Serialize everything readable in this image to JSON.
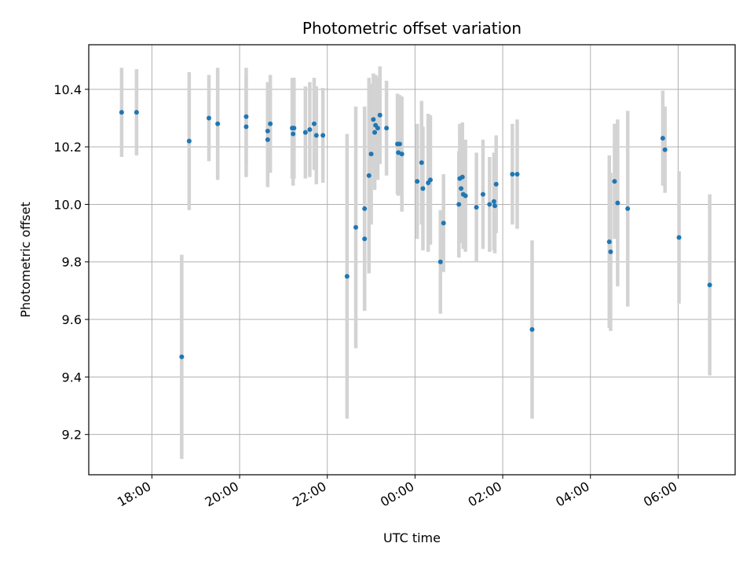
{
  "chart_data": {
    "type": "scatter",
    "title": "Photometric offset variation",
    "xlabel": "UTC time",
    "ylabel": "Photometric offset",
    "grid": true,
    "x_units": "hours since 00:00 UTC",
    "xlim": [
      -7.44,
      7.3
    ],
    "ylim": [
      9.06,
      10.555
    ],
    "x_ticks": [
      {
        "value": -6,
        "label": "18:00"
      },
      {
        "value": -4,
        "label": "20:00"
      },
      {
        "value": -2,
        "label": "22:00"
      },
      {
        "value": 0,
        "label": "00:00"
      },
      {
        "value": 2,
        "label": "02:00"
      },
      {
        "value": 4,
        "label": "04:00"
      },
      {
        "value": 6,
        "label": "06:00"
      }
    ],
    "y_ticks": [
      {
        "value": 9.2,
        "label": "9.2"
      },
      {
        "value": 9.4,
        "label": "9.4"
      },
      {
        "value": 9.6,
        "label": "9.6"
      },
      {
        "value": 9.8,
        "label": "9.8"
      },
      {
        "value": 10.0,
        "label": "10.0"
      },
      {
        "value": 10.2,
        "label": "10.2"
      },
      {
        "value": 10.4,
        "label": "10.4"
      }
    ],
    "marker_color": "#1f77b4",
    "errorbar_color": "#d3d3d3",
    "points": [
      {
        "x": -6.69,
        "y": 10.32,
        "err": 0.155
      },
      {
        "x": -6.35,
        "y": 10.32,
        "err": 0.15
      },
      {
        "x": -5.32,
        "y": 9.47,
        "err": 0.355
      },
      {
        "x": -5.15,
        "y": 10.22,
        "err": 0.24
      },
      {
        "x": -4.7,
        "y": 10.3,
        "err": 0.15
      },
      {
        "x": -4.5,
        "y": 10.28,
        "err": 0.195
      },
      {
        "x": -3.85,
        "y": 10.305,
        "err": 0.17
      },
      {
        "x": -3.85,
        "y": 10.27,
        "err": 0.175
      },
      {
        "x": -3.36,
        "y": 10.255,
        "err": 0.17
      },
      {
        "x": -3.36,
        "y": 10.225,
        "err": 0.165
      },
      {
        "x": -3.3,
        "y": 10.28,
        "err": 0.17
      },
      {
        "x": -2.8,
        "y": 10.265,
        "err": 0.175
      },
      {
        "x": -2.76,
        "y": 10.265,
        "err": 0.175
      },
      {
        "x": -2.78,
        "y": 10.245,
        "err": 0.18
      },
      {
        "x": -2.5,
        "y": 10.25,
        "err": 0.16
      },
      {
        "x": -2.4,
        "y": 10.26,
        "err": 0.165
      },
      {
        "x": -2.3,
        "y": 10.28,
        "err": 0.16
      },
      {
        "x": -2.25,
        "y": 10.24,
        "err": 0.17
      },
      {
        "x": -2.1,
        "y": 10.24,
        "err": 0.165
      },
      {
        "x": -1.55,
        "y": 9.75,
        "err": 0.495
      },
      {
        "x": -1.35,
        "y": 9.92,
        "err": 0.42
      },
      {
        "x": -1.15,
        "y": 9.88,
        "err": 0.25
      },
      {
        "x": -1.15,
        "y": 9.985,
        "err": 0.355
      },
      {
        "x": -1.05,
        "y": 10.1,
        "err": 0.34
      },
      {
        "x": -1.0,
        "y": 10.175,
        "err": 0.245
      },
      {
        "x": -0.95,
        "y": 10.295,
        "err": 0.16
      },
      {
        "x": -0.92,
        "y": 10.25,
        "err": 0.2
      },
      {
        "x": -0.9,
        "y": 10.275,
        "err": 0.175
      },
      {
        "x": -0.85,
        "y": 10.265,
        "err": 0.18
      },
      {
        "x": -0.8,
        "y": 10.31,
        "err": 0.17
      },
      {
        "x": -0.65,
        "y": 10.265,
        "err": 0.165
      },
      {
        "x": -0.4,
        "y": 10.21,
        "err": 0.175
      },
      {
        "x": -0.35,
        "y": 10.21,
        "err": 0.17
      },
      {
        "x": -0.38,
        "y": 10.18,
        "err": 0.15
      },
      {
        "x": -0.3,
        "y": 10.175,
        "err": 0.2
      },
      {
        "x": 0.05,
        "y": 10.08,
        "err": 0.2
      },
      {
        "x": 0.15,
        "y": 10.145,
        "err": 0.215
      },
      {
        "x": 0.18,
        "y": 10.055,
        "err": 0.215
      },
      {
        "x": 0.3,
        "y": 10.075,
        "err": 0.24
      },
      {
        "x": 0.35,
        "y": 10.085,
        "err": 0.225
      },
      {
        "x": 0.58,
        "y": 9.8,
        "err": 0.18
      },
      {
        "x": 0.65,
        "y": 9.935,
        "err": 0.17
      },
      {
        "x": 1.0,
        "y": 10.0,
        "err": 0.185
      },
      {
        "x": 1.02,
        "y": 10.09,
        "err": 0.19
      },
      {
        "x": 1.05,
        "y": 10.055,
        "err": 0.19
      },
      {
        "x": 1.08,
        "y": 10.095,
        "err": 0.19
      },
      {
        "x": 1.1,
        "y": 10.035,
        "err": 0.19
      },
      {
        "x": 1.15,
        "y": 10.03,
        "err": 0.195
      },
      {
        "x": 1.4,
        "y": 9.99,
        "err": 0.19
      },
      {
        "x": 1.55,
        "y": 10.035,
        "err": 0.19
      },
      {
        "x": 1.7,
        "y": 10.0,
        "err": 0.165
      },
      {
        "x": 1.8,
        "y": 10.01,
        "err": 0.17
      },
      {
        "x": 1.82,
        "y": 9.995,
        "err": 0.165
      },
      {
        "x": 1.85,
        "y": 10.07,
        "err": 0.17
      },
      {
        "x": 2.22,
        "y": 10.105,
        "err": 0.175
      },
      {
        "x": 2.33,
        "y": 10.105,
        "err": 0.19
      },
      {
        "x": 2.67,
        "y": 9.565,
        "err": 0.31
      },
      {
        "x": 4.43,
        "y": 9.87,
        "err": 0.3
      },
      {
        "x": 4.46,
        "y": 9.835,
        "err": 0.275
      },
      {
        "x": 4.55,
        "y": 10.08,
        "err": 0.2
      },
      {
        "x": 4.62,
        "y": 10.005,
        "err": 0.29
      },
      {
        "x": 4.85,
        "y": 9.985,
        "err": 0.34
      },
      {
        "x": 5.65,
        "y": 10.23,
        "err": 0.165
      },
      {
        "x": 5.7,
        "y": 10.19,
        "err": 0.15
      },
      {
        "x": 6.02,
        "y": 9.885,
        "err": 0.23
      },
      {
        "x": 6.72,
        "y": 9.72,
        "err": 0.315
      }
    ]
  }
}
